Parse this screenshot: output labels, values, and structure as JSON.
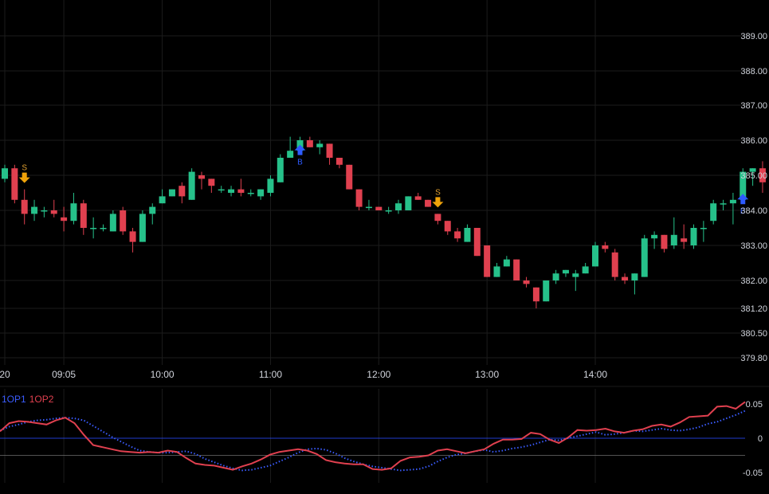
{
  "colors": {
    "background": "#000000",
    "grid": "#1c1c1c",
    "up": "#26c18a",
    "down": "#e0404f",
    "buy": "#2e5bff",
    "sell": "#f0a30a",
    "sell_text": "#e0a030",
    "osc1": "#3a5cff",
    "osc2": "#e0404f",
    "zero_line": "#2a4aff",
    "ref_line": "#777777",
    "text": "#d1d4dc"
  },
  "oscillator": {
    "legend": {
      "osc1": "1OP1",
      "osc2": "1OP2"
    },
    "ticks": [
      "0.05",
      "0",
      "-0.05"
    ]
  },
  "chart_data": [
    {
      "type": "candlestick",
      "title": "",
      "price_axis_ticks": [
        "389.00",
        "388.00",
        "387.00",
        "386.00",
        "385.00",
        "384.00",
        "383.00",
        "382.00",
        "381.20",
        "380.50",
        "379.80"
      ],
      "time_axis_ticks": [
        {
          "label": "20",
          "x": 0
        },
        {
          "label": "09:05",
          "x": 6
        },
        {
          "label": "10:00",
          "x": 16
        },
        {
          "label": "11:00",
          "x": 27
        },
        {
          "label": "12:00",
          "x": 38
        },
        {
          "label": "13:00",
          "x": 49
        },
        {
          "label": "14:00",
          "x": 60
        }
      ],
      "candles": [
        [
          384.9,
          385.3,
          384.8,
          385.2
        ],
        [
          385.2,
          385.3,
          384.2,
          384.3
        ],
        [
          384.3,
          384.6,
          383.6,
          383.9
        ],
        [
          383.9,
          384.3,
          383.7,
          384.1
        ],
        [
          384.0,
          384.1,
          383.8,
          384.0
        ],
        [
          384.0,
          384.3,
          383.8,
          383.9
        ],
        [
          383.8,
          384.1,
          383.4,
          383.7
        ],
        [
          383.7,
          384.5,
          383.6,
          384.2
        ],
        [
          384.2,
          384.3,
          383.3,
          383.5
        ],
        [
          383.5,
          383.8,
          383.2,
          383.5
        ],
        [
          383.5,
          383.6,
          383.4,
          383.5
        ],
        [
          383.4,
          384.0,
          383.4,
          383.9
        ],
        [
          384.0,
          384.1,
          383.3,
          383.4
        ],
        [
          383.4,
          383.5,
          382.8,
          383.1
        ],
        [
          383.1,
          384.0,
          383.1,
          383.9
        ],
        [
          383.9,
          384.2,
          383.6,
          384.1
        ],
        [
          384.2,
          384.6,
          384.2,
          384.4
        ],
        [
          384.4,
          384.6,
          384.4,
          384.6
        ],
        [
          384.7,
          384.8,
          384.2,
          384.4
        ],
        [
          384.3,
          385.2,
          384.3,
          385.1
        ],
        [
          385.0,
          385.1,
          384.6,
          384.9
        ],
        [
          384.9,
          384.9,
          384.5,
          384.7
        ],
        [
          384.6,
          384.7,
          384.5,
          384.6
        ],
        [
          384.5,
          384.7,
          384.4,
          384.6
        ],
        [
          384.6,
          384.9,
          384.4,
          384.5
        ],
        [
          384.5,
          384.6,
          384.4,
          384.5
        ],
        [
          384.4,
          384.6,
          384.3,
          384.6
        ],
        [
          384.5,
          385.0,
          384.4,
          384.9
        ],
        [
          384.8,
          385.6,
          384.8,
          385.5
        ],
        [
          385.5,
          386.1,
          385.5,
          385.7
        ],
        [
          385.7,
          386.1,
          385.6,
          386.0
        ],
        [
          386.0,
          386.1,
          385.8,
          385.8
        ],
        [
          385.8,
          386.0,
          385.6,
          385.9
        ],
        [
          385.9,
          385.9,
          385.3,
          385.5
        ],
        [
          385.5,
          385.5,
          385.2,
          385.3
        ],
        [
          385.3,
          385.3,
          384.6,
          384.6
        ],
        [
          384.6,
          384.6,
          384.0,
          384.1
        ],
        [
          384.1,
          384.3,
          384.0,
          384.1
        ],
        [
          384.1,
          384.1,
          384.0,
          384.0
        ],
        [
          384.0,
          384.1,
          383.9,
          384.0
        ],
        [
          384.0,
          384.3,
          383.9,
          384.2
        ],
        [
          384.0,
          384.4,
          384.0,
          384.4
        ],
        [
          384.4,
          384.5,
          384.3,
          384.3
        ],
        [
          384.3,
          384.3,
          384.1,
          384.1
        ],
        [
          383.9,
          383.9,
          383.6,
          383.7
        ],
        [
          383.7,
          383.7,
          383.3,
          383.4
        ],
        [
          383.4,
          383.5,
          383.1,
          383.2
        ],
        [
          383.1,
          383.6,
          383.1,
          383.5
        ],
        [
          383.5,
          383.5,
          382.7,
          382.7
        ],
        [
          383.0,
          383.0,
          382.1,
          382.1
        ],
        [
          382.1,
          382.5,
          382.1,
          382.4
        ],
        [
          382.4,
          382.7,
          382.4,
          382.6
        ],
        [
          382.6,
          382.6,
          382.0,
          382.0
        ],
        [
          382.0,
          382.1,
          381.8,
          381.9
        ],
        [
          381.8,
          381.8,
          381.2,
          381.4
        ],
        [
          381.4,
          382.0,
          381.4,
          382.0
        ],
        [
          382.0,
          382.3,
          381.9,
          382.2
        ],
        [
          382.2,
          382.3,
          382.1,
          382.3
        ],
        [
          382.1,
          382.3,
          381.7,
          382.2
        ],
        [
          382.2,
          382.5,
          382.2,
          382.4
        ],
        [
          382.4,
          383.1,
          382.4,
          383.0
        ],
        [
          383.0,
          383.1,
          382.8,
          382.9
        ],
        [
          382.8,
          382.9,
          382.0,
          382.1
        ],
        [
          382.1,
          382.2,
          381.9,
          382.0
        ],
        [
          382.0,
          382.2,
          381.6,
          382.2
        ],
        [
          382.1,
          383.3,
          382.1,
          383.2
        ],
        [
          383.2,
          383.4,
          382.9,
          383.3
        ],
        [
          383.3,
          383.3,
          382.8,
          382.9
        ],
        [
          383.0,
          383.8,
          382.9,
          383.3
        ],
        [
          383.2,
          383.6,
          382.9,
          383.1
        ],
        [
          383.0,
          383.6,
          382.9,
          383.5
        ],
        [
          383.5,
          383.7,
          383.1,
          383.5
        ],
        [
          383.7,
          384.3,
          383.6,
          384.2
        ],
        [
          384.2,
          384.3,
          384.0,
          384.2
        ],
        [
          384.2,
          384.5,
          383.6,
          384.3
        ],
        [
          384.3,
          385.2,
          384.2,
          385.1
        ],
        [
          385.1,
          385.2,
          384.7,
          385.2
        ],
        [
          385.2,
          385.4,
          384.5,
          384.8
        ],
        [
          384.8,
          385.0,
          384.4,
          384.6
        ],
        [
          384.6,
          384.6,
          383.8,
          384.0
        ]
      ],
      "signals": [
        {
          "index": 2,
          "type": "sell",
          "label": "S"
        },
        {
          "index": 30,
          "type": "buy",
          "label": "B"
        },
        {
          "index": 44,
          "type": "sell",
          "label": "S"
        },
        {
          "index": 75,
          "type": "buy",
          "label": "B"
        }
      ]
    },
    {
      "type": "line",
      "series": [
        {
          "name": "1OP1",
          "values": [
            0.011,
            0.017,
            0.02,
            0.024,
            0.026,
            0.027,
            0.029,
            0.03,
            0.029,
            0.026,
            0.018,
            0.01,
            0.002,
            -0.005,
            -0.012,
            -0.018,
            -0.02,
            -0.021,
            -0.021,
            -0.02,
            -0.019,
            -0.023,
            -0.03,
            -0.035,
            -0.04,
            -0.044,
            -0.047,
            -0.046,
            -0.043,
            -0.04,
            -0.034,
            -0.028,
            -0.021,
            -0.016,
            -0.015,
            -0.017,
            -0.022,
            -0.029,
            -0.034,
            -0.038,
            -0.041,
            -0.043,
            -0.045,
            -0.047,
            -0.046,
            -0.045,
            -0.041,
            -0.034,
            -0.028,
            -0.024,
            -0.022,
            -0.019,
            -0.017,
            -0.02,
            -0.018,
            -0.015,
            -0.013,
            -0.01,
            -0.006,
            -0.002,
            -0.003,
            0.0,
            0.003,
            0.006,
            0.009,
            0.005,
            0.006,
            0.008,
            0.011,
            0.01,
            0.012,
            0.014,
            0.012,
            0.011,
            0.013,
            0.016,
            0.021,
            0.024,
            0.029,
            0.034,
            0.04
          ]
        },
        {
          "name": "1OP2",
          "values": [
            0.01,
            0.022,
            0.025,
            0.024,
            0.022,
            0.02,
            0.026,
            0.03,
            0.022,
            0.005,
            -0.01,
            -0.013,
            -0.016,
            -0.019,
            -0.02,
            -0.021,
            -0.02,
            -0.021,
            -0.018,
            -0.02,
            -0.029,
            -0.037,
            -0.039,
            -0.04,
            -0.043,
            -0.046,
            -0.041,
            -0.037,
            -0.031,
            -0.024,
            -0.02,
            -0.018,
            -0.016,
            -0.018,
            -0.023,
            -0.032,
            -0.035,
            -0.037,
            -0.038,
            -0.038,
            -0.045,
            -0.046,
            -0.044,
            -0.033,
            -0.028,
            -0.027,
            -0.025,
            -0.018,
            -0.016,
            -0.019,
            -0.022,
            -0.019,
            -0.016,
            -0.008,
            -0.002,
            -0.002,
            -0.001,
            0.008,
            0.006,
            -0.002,
            -0.007,
            0.001,
            0.012,
            0.011,
            0.012,
            0.014,
            0.01,
            0.008,
            0.011,
            0.013,
            0.018,
            0.02,
            0.017,
            0.023,
            0.031,
            0.032,
            0.033,
            0.046,
            0.047,
            0.043,
            0.053
          ]
        }
      ],
      "ylim": [
        -0.05,
        0.05
      ],
      "ref_levels": [
        0,
        -0.025
      ]
    }
  ]
}
